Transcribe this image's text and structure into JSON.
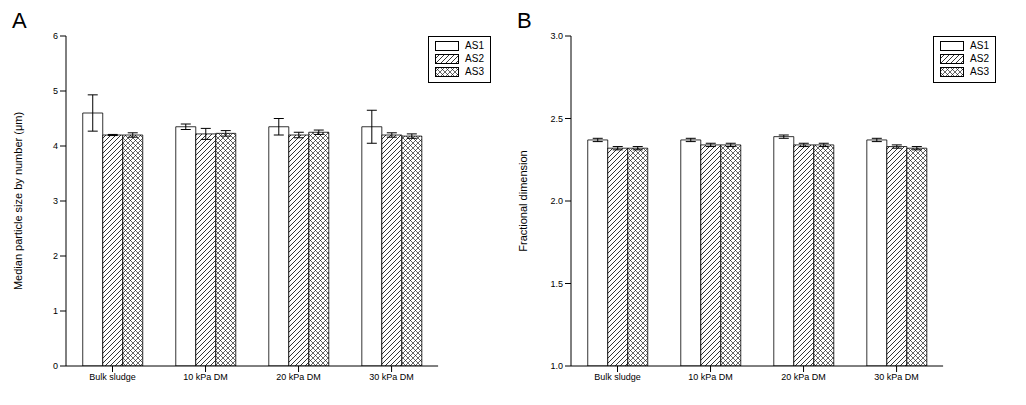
{
  "chart_data": [
    {
      "type": "bar",
      "title": "A",
      "ylabel": "Median particle size by number (μm)",
      "categories": [
        "Bulk sludge",
        "10 kPa DM",
        "20 kPa DM",
        "30 kPa DM"
      ],
      "series": [
        {
          "name": "AS1",
          "color": "#ffffff",
          "values": [
            4.6,
            4.35,
            4.35,
            4.35
          ],
          "errors": [
            0.33,
            0.05,
            0.15,
            0.3
          ]
        },
        {
          "name": "AS2",
          "color": "#ffffff",
          "values": [
            4.2,
            4.22,
            4.2,
            4.2
          ],
          "errors": [
            0.01,
            0.1,
            0.05,
            0.04
          ]
        },
        {
          "name": "AS3",
          "color": "#ffffff",
          "values": [
            4.2,
            4.23,
            4.25,
            4.18
          ],
          "errors": [
            0.04,
            0.05,
            0.04,
            0.04
          ]
        }
      ],
      "ylim": [
        0,
        6
      ],
      "yticks": [
        0,
        1,
        2,
        3,
        4,
        5,
        6
      ],
      "legend": "upper right"
    },
    {
      "type": "bar",
      "title": "B",
      "ylabel": "Fractional dimension",
      "categories": [
        "Bulk sludge",
        "10 kPa DM",
        "20 kPa DM",
        "30 kPa DM"
      ],
      "series": [
        {
          "name": "AS1",
          "color": "#ffffff",
          "values": [
            2.37,
            2.37,
            2.39,
            2.37
          ],
          "errors": [
            0.01,
            0.01,
            0.01,
            0.01
          ]
        },
        {
          "name": "AS2",
          "color": "#ffffff",
          "values": [
            2.32,
            2.34,
            2.34,
            2.33
          ],
          "errors": [
            0.01,
            0.01,
            0.01,
            0.01
          ]
        },
        {
          "name": "AS3",
          "color": "#ffffff",
          "values": [
            2.32,
            2.34,
            2.34,
            2.32
          ],
          "errors": [
            0.01,
            0.01,
            0.01,
            0.01
          ]
        }
      ],
      "ylim": [
        1,
        3
      ],
      "yticks": [
        {
          "value": 1,
          "label": "1.0"
        },
        {
          "value": 1.5,
          "label": "1.5"
        },
        {
          "value": 2,
          "label": "2.0"
        },
        {
          "value": 2.5,
          "label": "2.5"
        },
        {
          "value": 3,
          "label": "3.0"
        }
      ],
      "legend": "upper right"
    }
  ]
}
